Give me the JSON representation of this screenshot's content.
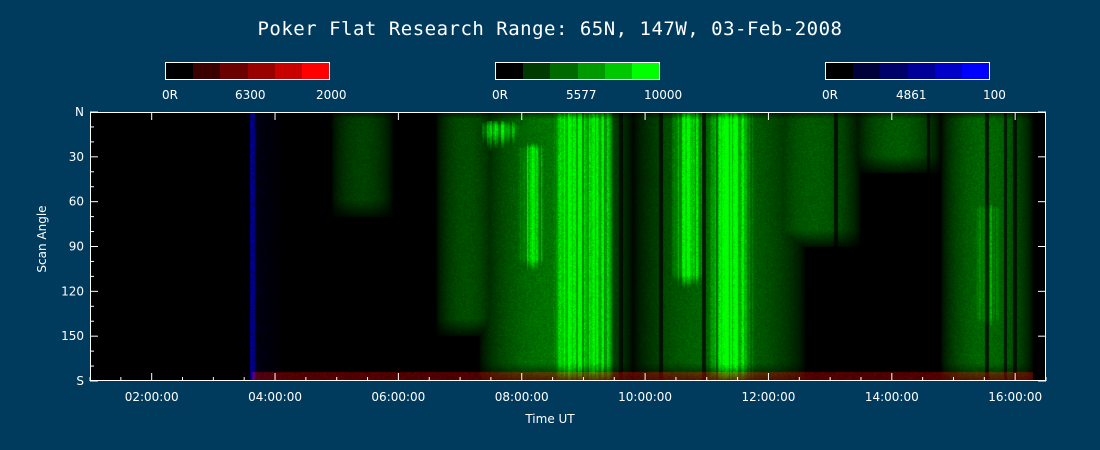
{
  "chart_data": {
    "type": "heatmap",
    "title": "Poker Flat Research Range: 65N, 147W, 03-Feb-2008",
    "xlabel": "Time UT",
    "ylabel": "Scan Angle",
    "x_ticks": [
      "02:00:00",
      "04:00:00",
      "06:00:00",
      "08:00:00",
      "10:00:00",
      "12:00:00",
      "14:00:00",
      "16:00:00"
    ],
    "x_tick_hours": [
      2,
      4,
      6,
      8,
      10,
      12,
      14,
      16
    ],
    "xlim_hours": [
      1.0,
      16.5
    ],
    "y_ticks": [
      "N",
      "30",
      "60",
      "90",
      "120",
      "150",
      "S"
    ],
    "y_tick_values": [
      0,
      30,
      60,
      90,
      120,
      150,
      180
    ],
    "ylim": [
      0,
      180
    ],
    "colorbars": [
      {
        "name": "6300",
        "min_label": "0R",
        "mid_label": "6300",
        "max_label": "2000",
        "colors": [
          "#000000",
          "#3a0000",
          "#6a0000",
          "#990000",
          "#c80000",
          "#ff0000"
        ]
      },
      {
        "name": "5577",
        "min_label": "0R",
        "mid_label": "5577",
        "max_label": "10000",
        "colors": [
          "#000000",
          "#003a00",
          "#006a00",
          "#009900",
          "#00c800",
          "#00ff00"
        ]
      },
      {
        "name": "4861",
        "min_label": "0R",
        "mid_label": "4861",
        "max_label": "100",
        "colors": [
          "#000000",
          "#00003a",
          "#00006a",
          "#000099",
          "#0000c8",
          "#0000ff"
        ]
      }
    ],
    "emission_structures": {
      "green_diffuse": [
        {
          "t0": 4.9,
          "t1": 5.9,
          "s0": 0,
          "s1": 70,
          "level": 0.25
        },
        {
          "t0": 6.6,
          "t1": 7.6,
          "s0": 0,
          "s1": 150,
          "level": 0.3
        },
        {
          "t0": 7.3,
          "t1": 9.8,
          "s0": 0,
          "s1": 180,
          "level": 0.45
        },
        {
          "t0": 9.8,
          "t1": 12.6,
          "s0": 0,
          "s1": 180,
          "level": 0.4
        },
        {
          "t0": 12.0,
          "t1": 13.5,
          "s0": 0,
          "s1": 90,
          "level": 0.35
        },
        {
          "t0": 13.4,
          "t1": 14.8,
          "s0": 0,
          "s1": 40,
          "level": 0.35
        },
        {
          "t0": 14.8,
          "t1": 16.3,
          "s0": 0,
          "s1": 180,
          "level": 0.4
        }
      ],
      "green_bright": [
        {
          "t0": 8.4,
          "t1": 9.3,
          "s0": 0,
          "s1": 180,
          "level": 0.9
        },
        {
          "t0": 9.0,
          "t1": 9.5,
          "s0": 0,
          "s1": 180,
          "level": 0.8
        },
        {
          "t0": 10.4,
          "t1": 11.0,
          "s0": 0,
          "s1": 120,
          "level": 0.85
        },
        {
          "t0": 11.0,
          "t1": 11.8,
          "s0": 0,
          "s1": 180,
          "level": 0.9
        },
        {
          "t0": 7.3,
          "t1": 8.0,
          "s0": 5,
          "s1": 25,
          "level": 0.8
        },
        {
          "t0": 7.9,
          "t1": 8.4,
          "s0": 20,
          "s1": 110,
          "level": 0.75
        },
        {
          "t0": 15.3,
          "t1": 15.8,
          "s0": 60,
          "s1": 150,
          "level": 0.6
        }
      ],
      "blue_band": {
        "t0": 3.58,
        "t1": 3.66,
        "s0": 0,
        "s1": 180,
        "level": 0.7
      },
      "red_horizon": {
        "t0": 3.6,
        "t1": 16.3,
        "s0": 174,
        "s1": 180,
        "level": 0.4
      },
      "dark_stripes_hours": [
        9.6,
        10.25,
        10.95,
        13.1,
        14.6,
        15.55,
        15.85,
        16.0
      ]
    }
  }
}
